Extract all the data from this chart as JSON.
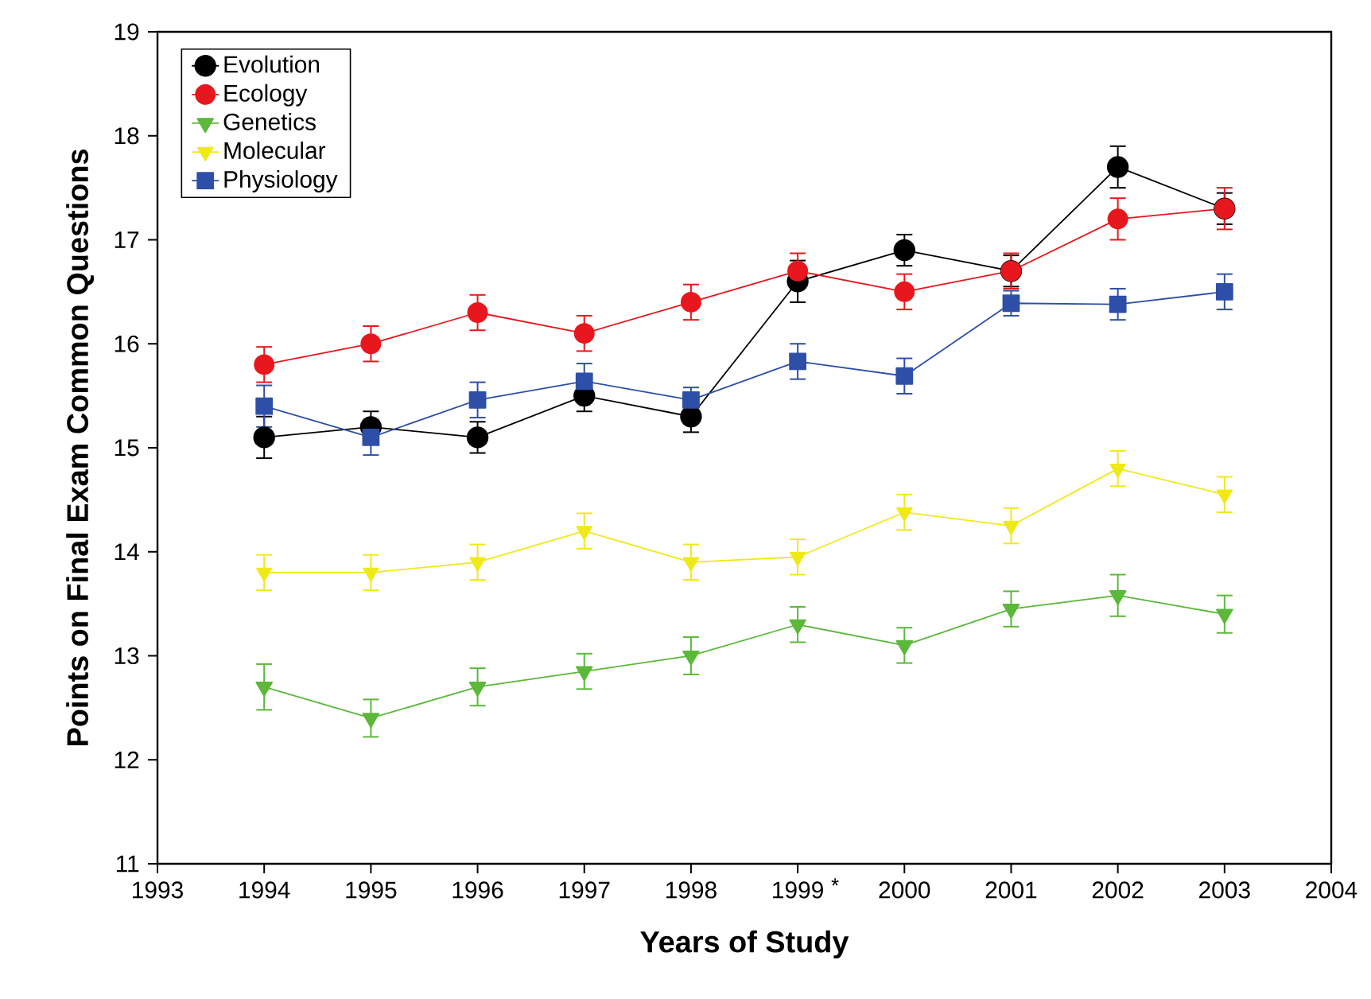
{
  "chart_data": {
    "type": "line",
    "xlabel": "Years of Study",
    "ylabel": "Points on Final Exam Common Questions",
    "x": [
      1994,
      1995,
      1996,
      1997,
      1998,
      1999,
      2000,
      2001,
      2002,
      2003
    ],
    "series": [
      {
        "name": "Evolution",
        "color": "#000000",
        "marker": "circle",
        "values": [
          15.1,
          15.2,
          15.1,
          15.5,
          15.3,
          16.6,
          16.9,
          16.7,
          17.7,
          17.3
        ],
        "errors": [
          0.2,
          0.15,
          0.15,
          0.15,
          0.15,
          0.2,
          0.15,
          0.15,
          0.2,
          0.15
        ]
      },
      {
        "name": "Ecology",
        "color": "#e8171d",
        "marker": "circle",
        "values": [
          15.8,
          16.0,
          16.3,
          16.1,
          16.4,
          16.7,
          16.5,
          16.7,
          17.2,
          17.3
        ],
        "errors": [
          0.17,
          0.17,
          0.17,
          0.17,
          0.17,
          0.17,
          0.17,
          0.17,
          0.2,
          0.2
        ]
      },
      {
        "name": "Genetics",
        "color": "#5bb83a",
        "marker": "triangle",
        "values": [
          12.7,
          12.4,
          12.7,
          12.85,
          13.0,
          13.3,
          13.1,
          13.45,
          13.58,
          13.4
        ],
        "errors": [
          0.22,
          0.18,
          0.18,
          0.17,
          0.18,
          0.17,
          0.17,
          0.17,
          0.2,
          0.18
        ]
      },
      {
        "name": "Molecular",
        "color": "#f0e918",
        "marker": "triangle",
        "values": [
          13.8,
          13.8,
          13.9,
          14.2,
          13.9,
          13.95,
          14.38,
          14.25,
          14.8,
          14.55
        ],
        "errors": [
          0.17,
          0.17,
          0.17,
          0.17,
          0.17,
          0.17,
          0.17,
          0.17,
          0.17,
          0.17
        ]
      },
      {
        "name": "Physiology",
        "color": "#2e4fa8",
        "marker": "square",
        "values": [
          15.4,
          15.1,
          15.46,
          15.64,
          15.46,
          15.83,
          15.69,
          16.39,
          16.38,
          16.5
        ],
        "errors": [
          0.2,
          0.17,
          0.17,
          0.17,
          0.12,
          0.17,
          0.17,
          0.12,
          0.15,
          0.17
        ]
      }
    ],
    "xlim": [
      1993,
      2004
    ],
    "xticks": [
      1993,
      1994,
      1995,
      1996,
      1997,
      1998,
      1999,
      2000,
      2001,
      2002,
      2003,
      2004
    ],
    "ylim": [
      11,
      19
    ],
    "yticks": [
      11,
      12,
      13,
      14,
      15,
      16,
      17,
      18,
      19
    ],
    "legend": "top left",
    "grid": false,
    "line_style": "solid",
    "annotations": [
      "*"
    ]
  }
}
